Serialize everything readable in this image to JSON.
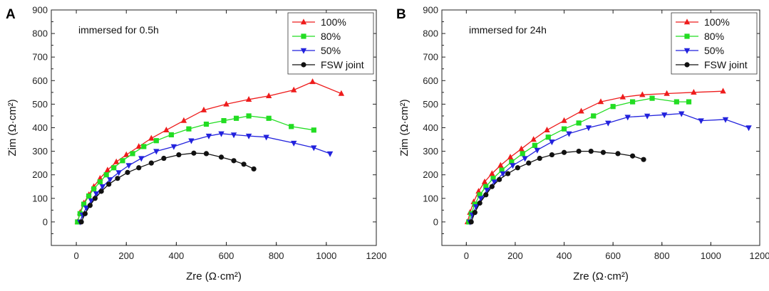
{
  "chart_data": [
    {
      "type": "line",
      "panel": "A",
      "annotation": "immersed for 0.5h",
      "xlabel": "Zre (Ω·cm²)",
      "ylabel": "Zim (Ω·cm²)",
      "xlim": [
        -100,
        1200
      ],
      "ylim": [
        -100,
        900
      ],
      "xticks": [
        0,
        200,
        400,
        600,
        800,
        1000,
        1200
      ],
      "yticks": [
        0,
        100,
        200,
        300,
        400,
        500,
        600,
        700,
        800,
        900
      ],
      "legend_position": "top-right",
      "series": [
        {
          "name": "100%",
          "color": "#ee1c1c",
          "marker": "triangle-up",
          "x": [
            5,
            15,
            30,
            50,
            70,
            95,
            125,
            160,
            200,
            250,
            300,
            360,
            430,
            510,
            600,
            690,
            770,
            870,
            945,
            1060
          ],
          "y": [
            0,
            40,
            80,
            115,
            150,
            185,
            220,
            255,
            285,
            320,
            355,
            390,
            430,
            475,
            500,
            520,
            535,
            560,
            595,
            545
          ]
        },
        {
          "name": "80%",
          "color": "#22dd22",
          "marker": "square",
          "x": [
            5,
            15,
            30,
            50,
            70,
            95,
            120,
            150,
            185,
            225,
            270,
            320,
            380,
            450,
            520,
            590,
            640,
            690,
            770,
            860,
            950
          ],
          "y": [
            0,
            35,
            75,
            110,
            140,
            170,
            200,
            230,
            260,
            290,
            320,
            345,
            370,
            395,
            415,
            430,
            440,
            450,
            440,
            405,
            390
          ]
        },
        {
          "name": "50%",
          "color": "#2222dd",
          "marker": "triangle-down",
          "x": [
            15,
            25,
            40,
            60,
            80,
            105,
            135,
            170,
            210,
            260,
            320,
            390,
            460,
            530,
            580,
            630,
            690,
            760,
            870,
            950,
            1015
          ],
          "y": [
            0,
            30,
            60,
            90,
            120,
            150,
            180,
            210,
            240,
            270,
            300,
            320,
            345,
            365,
            375,
            370,
            365,
            360,
            335,
            315,
            290
          ]
        },
        {
          "name": "FSW joint",
          "color": "#111111",
          "marker": "circle",
          "x": [
            20,
            35,
            55,
            75,
            100,
            130,
            165,
            205,
            250,
            300,
            350,
            410,
            470,
            520,
            580,
            630,
            670,
            710
          ],
          "y": [
            0,
            35,
            70,
            100,
            130,
            160,
            185,
            210,
            230,
            250,
            270,
            285,
            292,
            290,
            275,
            260,
            245,
            225
          ]
        }
      ]
    },
    {
      "type": "line",
      "panel": "B",
      "annotation": "immersed for 24h",
      "xlabel": "Zre (Ω·cm²)",
      "ylabel": "Zim (Ω·cm²)",
      "xlim": [
        -100,
        1200
      ],
      "ylim": [
        -100,
        900
      ],
      "xticks": [
        0,
        200,
        400,
        600,
        800,
        1000,
        1200
      ],
      "yticks": [
        0,
        100,
        200,
        300,
        400,
        500,
        600,
        700,
        800,
        900
      ],
      "legend_position": "top-right",
      "series": [
        {
          "name": "100%",
          "color": "#ee1c1c",
          "marker": "triangle-up",
          "x": [
            5,
            15,
            30,
            50,
            75,
            105,
            140,
            180,
            225,
            275,
            330,
            400,
            470,
            550,
            640,
            720,
            820,
            930,
            1050
          ],
          "y": [
            0,
            40,
            85,
            130,
            170,
            205,
            240,
            275,
            310,
            350,
            390,
            430,
            470,
            510,
            530,
            540,
            545,
            550,
            555
          ]
        },
        {
          "name": "80%",
          "color": "#22dd22",
          "marker": "square",
          "x": [
            10,
            20,
            35,
            55,
            80,
            110,
            145,
            185,
            230,
            280,
            335,
            400,
            460,
            520,
            600,
            680,
            760,
            860,
            910
          ],
          "y": [
            0,
            35,
            75,
            115,
            150,
            185,
            220,
            255,
            290,
            325,
            360,
            395,
            420,
            450,
            490,
            510,
            525,
            510,
            510
          ]
        },
        {
          "name": "50%",
          "color": "#2222dd",
          "marker": "triangle-down",
          "x": [
            15,
            25,
            40,
            60,
            85,
            115,
            150,
            190,
            240,
            290,
            350,
            420,
            500,
            580,
            660,
            740,
            810,
            880,
            960,
            1060,
            1155
          ],
          "y": [
            0,
            30,
            65,
            100,
            135,
            170,
            205,
            240,
            270,
            305,
            340,
            375,
            400,
            420,
            445,
            450,
            455,
            460,
            430,
            435,
            400
          ]
        },
        {
          "name": "FSW joint",
          "color": "#111111",
          "marker": "circle",
          "x": [
            20,
            35,
            55,
            80,
            105,
            135,
            170,
            210,
            255,
            300,
            350,
            400,
            460,
            510,
            560,
            620,
            680,
            725
          ],
          "y": [
            0,
            40,
            80,
            115,
            150,
            180,
            205,
            230,
            250,
            270,
            285,
            295,
            300,
            300,
            295,
            290,
            280,
            265
          ]
        }
      ]
    }
  ]
}
